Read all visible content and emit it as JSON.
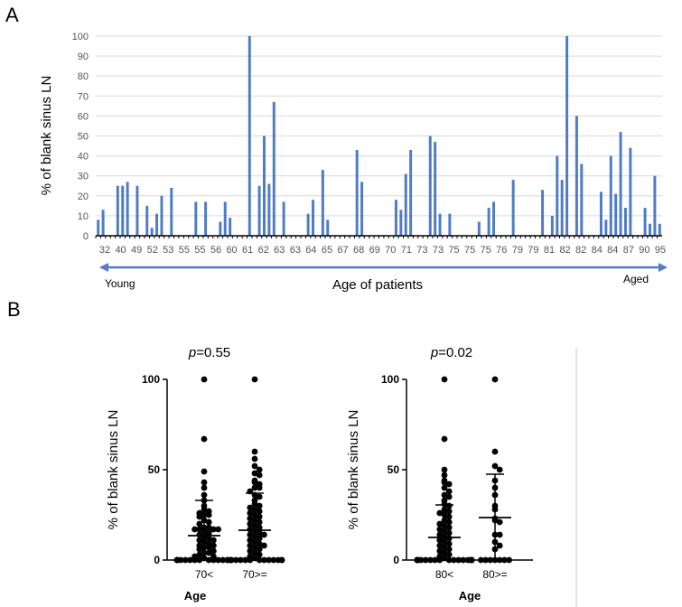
{
  "figure": {
    "panel_a_label": "A",
    "panel_b_label": "B"
  },
  "colors": {
    "bar": "#4f7cc4",
    "arrow": "#4f7cc4",
    "dot": "#000000",
    "divider": "#c8c8c8"
  },
  "chart_data": [
    {
      "type": "bar",
      "ylabel": "% of blank sinus LN",
      "xlabel": "Age of patients",
      "arrow_left_label": "Young",
      "arrow_right_label": "Aged",
      "ylim": [
        0,
        100
      ],
      "yticks": [
        0,
        10,
        20,
        30,
        40,
        50,
        60,
        70,
        80,
        90,
        100
      ],
      "x_tick_labels": [
        "32",
        "40",
        "49",
        "52",
        "53",
        "55",
        "55",
        "56",
        "60",
        "61",
        "62",
        "63",
        "63",
        "64",
        "65",
        "67",
        "68",
        "69",
        "70",
        "71",
        "73",
        "73",
        "75",
        "75",
        "75",
        "76",
        "79",
        "79",
        "81",
        "82",
        "82",
        "84",
        "84",
        "87",
        "90",
        "95"
      ],
      "values": [
        8,
        13,
        0,
        0,
        25,
        25,
        27,
        0,
        25,
        0,
        15,
        4,
        11,
        20,
        0,
        24,
        0,
        0,
        0,
        0,
        17,
        0,
        17,
        0,
        0,
        7,
        17,
        9,
        0,
        0,
        0,
        100,
        0,
        25,
        50,
        26,
        67,
        0,
        17,
        0,
        0,
        0,
        0,
        11,
        18,
        0,
        33,
        8,
        0,
        0,
        0,
        0,
        0,
        43,
        27,
        0,
        0,
        0,
        0,
        0,
        0,
        18,
        13,
        31,
        43,
        0,
        0,
        0,
        50,
        47,
        11,
        0,
        11,
        0,
        0,
        0,
        0,
        0,
        7,
        0,
        14,
        17,
        0,
        0,
        0,
        28,
        0,
        0,
        0,
        0,
        0,
        23,
        0,
        10,
        40,
        28,
        100,
        0,
        60,
        36,
        0,
        0,
        0,
        22,
        8,
        40,
        21,
        52,
        14,
        44,
        0,
        0,
        14,
        6,
        30,
        6
      ]
    },
    {
      "type": "scatter",
      "p_label": "p",
      "p_value": "=0.55",
      "ylabel": "% of blank sinus LN",
      "xlabel": "Age",
      "categories": [
        "70<",
        "70>="
      ],
      "ylim": [
        0,
        100
      ],
      "yticks": [
        0,
        50,
        100
      ],
      "series": [
        {
          "values": [
            100,
            67,
            49,
            43,
            40,
            36,
            33,
            30,
            28,
            27,
            26,
            25,
            25,
            24,
            22,
            21,
            20,
            18,
            18,
            17,
            17,
            17,
            17,
            16,
            15,
            14,
            13,
            12,
            11,
            11,
            10,
            9,
            8,
            8,
            7,
            7,
            6,
            5,
            4,
            4,
            3,
            2,
            2,
            1,
            0,
            0,
            0,
            0,
            0,
            0,
            0,
            0,
            0,
            0,
            0,
            0,
            0,
            0,
            0,
            0
          ],
          "mean": 13.5,
          "sd_low": 0,
          "sd_high": 33
        },
        {
          "values": [
            100,
            60,
            56,
            52,
            50,
            48,
            47,
            44,
            43,
            42,
            40,
            40,
            38,
            36,
            35,
            33,
            31,
            30,
            29,
            28,
            27,
            26,
            25,
            24,
            23,
            22,
            21,
            20,
            19,
            18,
            17,
            16,
            15,
            14,
            14,
            13,
            12,
            11,
            10,
            9,
            8,
            8,
            7,
            6,
            5,
            4,
            3,
            2,
            1,
            0,
            0,
            0,
            0,
            0,
            0,
            0,
            0,
            0,
            0,
            0,
            0,
            0,
            0
          ],
          "mean": 16.5,
          "sd_low": 0,
          "sd_high": 37
        }
      ]
    },
    {
      "type": "scatter",
      "p_label": "p",
      "p_value": "=0.02",
      "ylabel": "% of blank sinus LN",
      "xlabel": "Age",
      "categories": [
        "80<",
        "80>="
      ],
      "ylim": [
        0,
        100
      ],
      "yticks": [
        0,
        50,
        100
      ],
      "series": [
        {
          "values": [
            100,
            67,
            50,
            47,
            44,
            43,
            42,
            40,
            38,
            36,
            35,
            33,
            31,
            30,
            28,
            27,
            26,
            25,
            24,
            22,
            21,
            20,
            19,
            18,
            17,
            16,
            15,
            14,
            13,
            12,
            11,
            10,
            9,
            8,
            7,
            6,
            5,
            4,
            3,
            2,
            1,
            0,
            0,
            0,
            0,
            0,
            0,
            0,
            0,
            0,
            0,
            0,
            0,
            0,
            0,
            0,
            0,
            0,
            0,
            0,
            0,
            0,
            0,
            0,
            0,
            0,
            0,
            0,
            0,
            0,
            0,
            0
          ],
          "mean": 12.5,
          "sd_low": 0,
          "sd_high": 30.5
        },
        {
          "values": [
            100,
            60,
            52,
            50,
            44,
            40,
            36,
            30,
            28,
            23,
            22,
            21,
            14,
            14,
            10,
            8,
            6,
            0,
            0,
            0,
            0,
            0,
            0,
            0
          ],
          "mean": 23.5,
          "sd_low": 0,
          "sd_high": 47.5
        }
      ]
    }
  ]
}
